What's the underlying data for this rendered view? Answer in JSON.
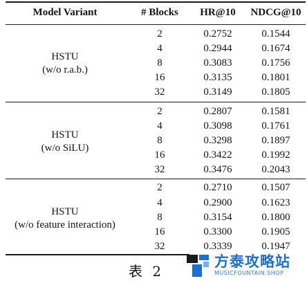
{
  "table": {
    "headers": {
      "model": "Model Variant",
      "blocks": "# Blocks",
      "hr": "HR@10",
      "ndcg": "NDCG@10"
    },
    "groups": [
      {
        "model_line1": "HSTU",
        "model_line2": "(w/o r.a.b.)",
        "rows": [
          {
            "blocks": "2",
            "hr": "0.2752",
            "ndcg": "0.1544"
          },
          {
            "blocks": "4",
            "hr": "0.2944",
            "ndcg": "0.1674"
          },
          {
            "blocks": "8",
            "hr": "0.3083",
            "ndcg": "0.1756"
          },
          {
            "blocks": "16",
            "hr": "0.3135",
            "ndcg": "0.1801"
          },
          {
            "blocks": "32",
            "hr": "0.3149",
            "ndcg": "0.1805"
          }
        ]
      },
      {
        "model_line1": "HSTU",
        "model_line2": "(w/o SiLU)",
        "rows": [
          {
            "blocks": "2",
            "hr": "0.2807",
            "ndcg": "0.1581"
          },
          {
            "blocks": "4",
            "hr": "0.3098",
            "ndcg": "0.1761"
          },
          {
            "blocks": "8",
            "hr": "0.3298",
            "ndcg": "0.1897"
          },
          {
            "blocks": "16",
            "hr": "0.3422",
            "ndcg": "0.1992"
          },
          {
            "blocks": "32",
            "hr": "0.3476",
            "ndcg": "0.2043"
          }
        ]
      },
      {
        "model_line1": "HSTU",
        "model_line2": "(w/o feature interaction)",
        "rows": [
          {
            "blocks": "2",
            "hr": "0.2710",
            "ndcg": "0.1507"
          },
          {
            "blocks": "4",
            "hr": "0.2900",
            "ndcg": "0.1623"
          },
          {
            "blocks": "8",
            "hr": "0.3154",
            "ndcg": "0.1800"
          },
          {
            "blocks": "16",
            "hr": "0.3300",
            "ndcg": "0.1905"
          },
          {
            "blocks": "32",
            "hr": "0.3339",
            "ndcg": "0.1947"
          }
        ]
      }
    ]
  },
  "caption": "表 2",
  "watermark": {
    "title": "方泰攻略站",
    "subtitle": "MUSICFOUNTAIN.SHOP",
    "colors": {
      "dark": "#1a1a1a",
      "blue": "#1d6fd0",
      "light_blue": "#6fb3f2"
    }
  }
}
